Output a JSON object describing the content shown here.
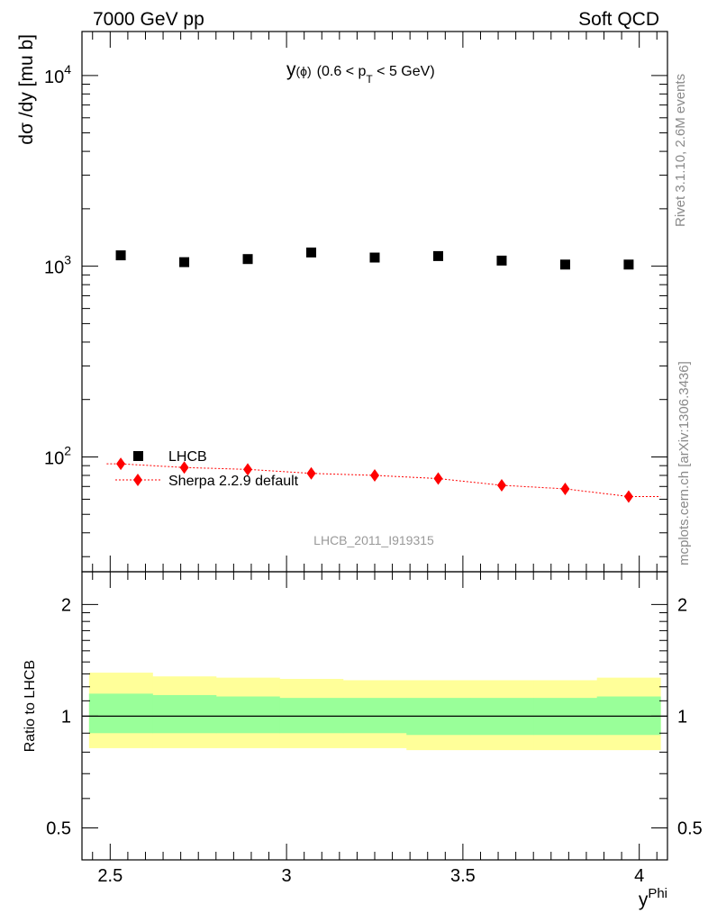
{
  "header": {
    "left": "7000 GeV pp",
    "right": "Soft QCD"
  },
  "side_text": {
    "rivet": "Rivet 3.1.10,  2.6M events",
    "mcplots": "mcplots.cern.ch [arXiv:1306.3436]"
  },
  "plot_title": {
    "y": "y",
    "phi": "(ϕ)",
    "range_a": "(0.6 < p",
    "sub": "T",
    "range_b": " < 5 GeV)"
  },
  "watermark": "LHCB_2011_I919315",
  "colors": {
    "data": "#000000",
    "mc": "#ff0000",
    "band_inner": "#99ff99",
    "band_outer": "#ffff99"
  },
  "chart_data": [
    {
      "type": "scatter",
      "name": "main",
      "ylabel": "dσ /dy [mu b]",
      "yscale": "log",
      "ylim": [
        25,
        17000
      ],
      "xlim": [
        2.42,
        4.08
      ],
      "yticks": [
        {
          "v": 100,
          "base": "10",
          "exp": "2"
        },
        {
          "v": 1000,
          "base": "10",
          "exp": "3"
        },
        {
          "v": 10000,
          "base": "10",
          "exp": "4"
        }
      ],
      "legend_position": "lower-left",
      "series": [
        {
          "name": "LHCB",
          "style": "square",
          "x": [
            2.53,
            2.71,
            2.89,
            3.07,
            3.25,
            3.43,
            3.61,
            3.79,
            3.97
          ],
          "y": [
            1140,
            1050,
            1090,
            1180,
            1110,
            1130,
            1070,
            1020,
            1020
          ]
        },
        {
          "name": "Sherpa 2.2.9 default",
          "style": "diamond-dotted-line",
          "x": [
            2.53,
            2.71,
            2.89,
            3.07,
            3.25,
            3.43,
            3.61,
            3.79,
            3.97
          ],
          "y": [
            92,
            88,
            86,
            82,
            80,
            77,
            71,
            68,
            62
          ]
        }
      ]
    },
    {
      "type": "area",
      "name": "ratio",
      "ylabel": "Ratio to LHCB",
      "yscale": "log",
      "ylim": [
        0.41,
        2.45
      ],
      "xlim": [
        2.42,
        4.08
      ],
      "xlabel_base": "y",
      "xlabel_sup": "Phi",
      "yticks": [
        {
          "v": 0.5,
          "label": "0.5"
        },
        {
          "v": 1,
          "label": "1"
        },
        {
          "v": 2,
          "label": "2"
        }
      ],
      "xticks": [
        {
          "v": 2.5,
          "label": "2.5"
        },
        {
          "v": 3,
          "label": "3"
        },
        {
          "v": 3.5,
          "label": "3.5"
        },
        {
          "v": 4,
          "label": "4"
        }
      ],
      "bins": [
        2.44,
        2.62,
        2.8,
        2.98,
        3.16,
        3.34,
        3.52,
        3.7,
        3.88,
        4.06
      ],
      "stat_band": [
        [
          0.9,
          1.15
        ],
        [
          0.9,
          1.14
        ],
        [
          0.9,
          1.13
        ],
        [
          0.9,
          1.12
        ],
        [
          0.9,
          1.12
        ],
        [
          0.89,
          1.12
        ],
        [
          0.89,
          1.12
        ],
        [
          0.89,
          1.12
        ],
        [
          0.89,
          1.13
        ]
      ],
      "total_band": [
        [
          0.82,
          1.31
        ],
        [
          0.82,
          1.28
        ],
        [
          0.82,
          1.27
        ],
        [
          0.82,
          1.26
        ],
        [
          0.82,
          1.25
        ],
        [
          0.81,
          1.25
        ],
        [
          0.81,
          1.25
        ],
        [
          0.81,
          1.25
        ],
        [
          0.81,
          1.27
        ]
      ]
    }
  ]
}
